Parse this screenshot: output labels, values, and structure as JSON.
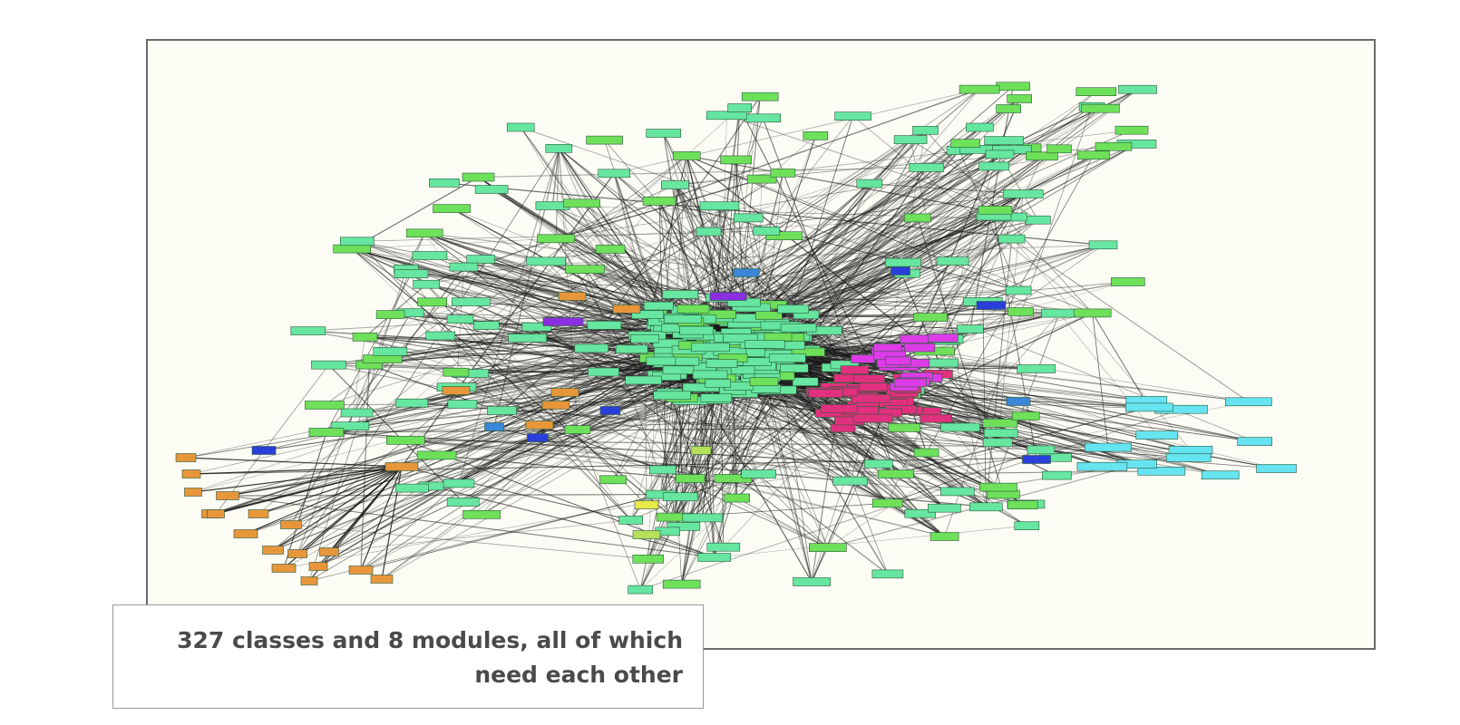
{
  "slide": {
    "caption": "327 classes and 8 modules, all of which need each other"
  },
  "graph": {
    "node_colors": {
      "mint": "#66e6a0",
      "green": "#6ee05a",
      "pink": "#e0307e",
      "magenta": "#dd3be8",
      "orange": "#e8963a",
      "blue": "#2a3fd9",
      "steel_blue": "#3a86d9",
      "cyan": "#66e4f2",
      "purple": "#8a2ee0",
      "yellow": "#e8e84a",
      "lime": "#b6e05a"
    },
    "edge_color": "#1a1a1a",
    "background": "#fcfcf5"
  }
}
